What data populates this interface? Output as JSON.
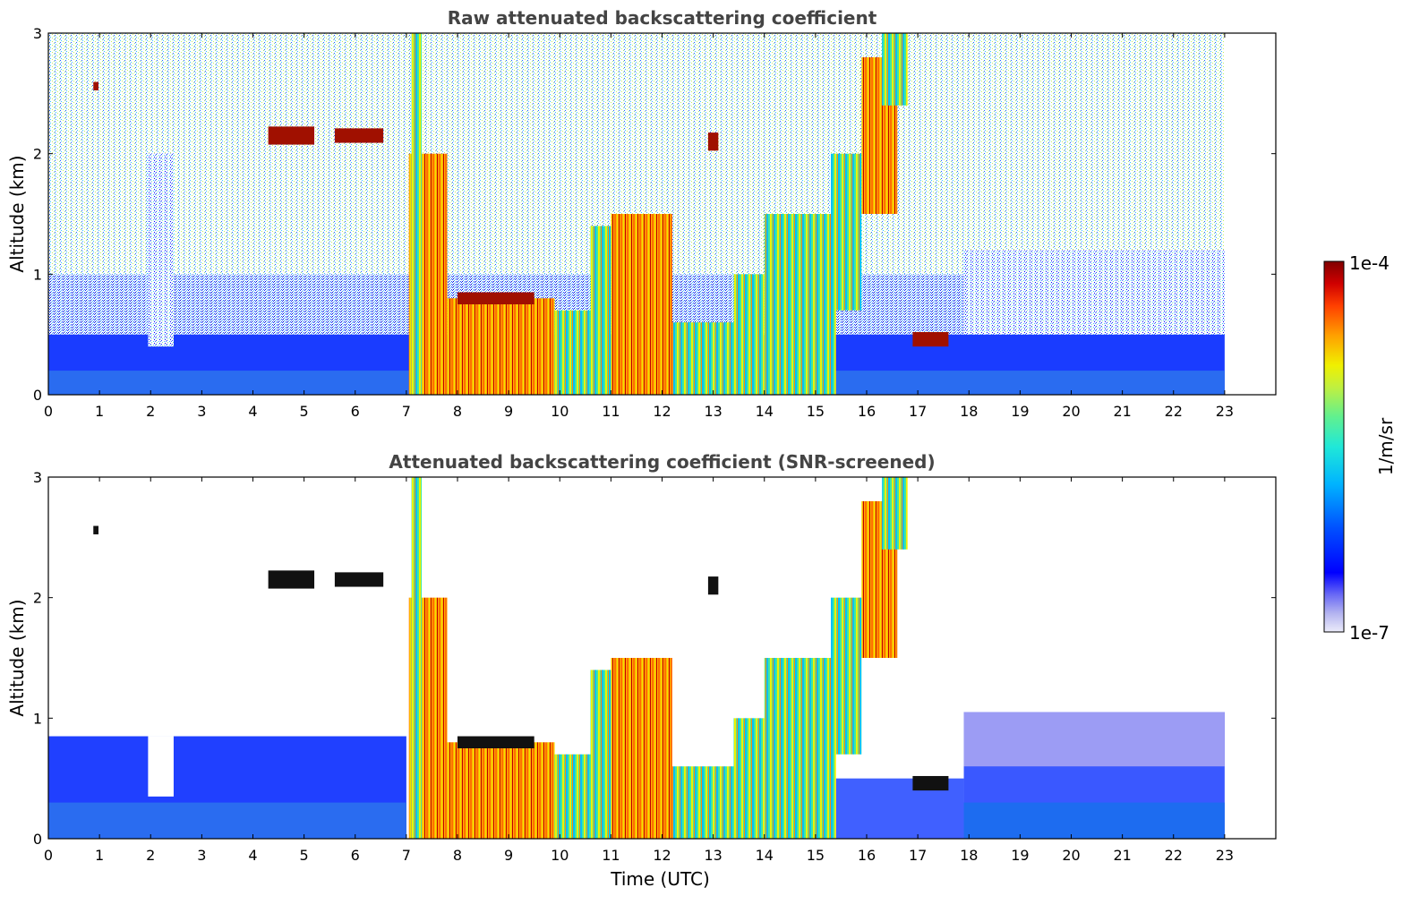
{
  "chart_data": [
    {
      "type": "heatmap",
      "title": "Raw attenuated backscattering coefficient",
      "xlabel": "",
      "ylabel": "Altitude (km)",
      "xlim": [
        0,
        24
      ],
      "ylim": [
        0,
        3
      ],
      "xticks": [
        "0",
        "1",
        "2",
        "3",
        "4",
        "5",
        "6",
        "7",
        "8",
        "9",
        "10",
        "11",
        "12",
        "13",
        "14",
        "15",
        "16",
        "17",
        "18",
        "19",
        "20",
        "21",
        "22",
        "23"
      ],
      "yticks": [
        "0",
        "1",
        "2",
        "3"
      ],
      "screened": false
    },
    {
      "type": "heatmap",
      "title": "Attenuated backscattering coefficient (SNR-screened)",
      "xlabel": "Time (UTC)",
      "ylabel": "Altitude (km)",
      "xlim": [
        0,
        24
      ],
      "ylim": [
        0,
        3
      ],
      "xticks": [
        "0",
        "1",
        "2",
        "3",
        "4",
        "5",
        "6",
        "7",
        "8",
        "9",
        "10",
        "11",
        "12",
        "13",
        "14",
        "15",
        "16",
        "17",
        "18",
        "19",
        "20",
        "21",
        "22",
        "23"
      ],
      "yticks": [
        "0",
        "1",
        "2",
        "3"
      ],
      "screened": true
    }
  ],
  "colorbar": {
    "min_label": "1e-7",
    "max_label": "1e-4",
    "unit_label": "1/m/sr",
    "colors": [
      "#ececfa",
      "#b4b4f0",
      "#7878f0",
      "#0000ff",
      "#0040ff",
      "#0090ff",
      "#00c8ff",
      "#20e8d8",
      "#60f090",
      "#b0f050",
      "#f0f000",
      "#ffc000",
      "#ff8000",
      "#ff3000",
      "#d00000",
      "#800000"
    ]
  },
  "features": {
    "data_end_hour": 23,
    "cloud_segments": [
      {
        "t0": 0.88,
        "t1": 0.98,
        "z": 2.56,
        "thick": 0.07
      },
      {
        "t0": 4.3,
        "t1": 5.2,
        "z": 2.15,
        "thick": 0.15
      },
      {
        "t0": 5.6,
        "t1": 6.55,
        "z": 2.15,
        "thick": 0.12
      },
      {
        "t0": 8.0,
        "t1": 9.5,
        "z": 0.8,
        "thick": 0.1
      },
      {
        "t0": 16.9,
        "t1": 17.6,
        "z": 0.46,
        "thick": 0.12
      },
      {
        "t0": 12.9,
        "t1": 13.1,
        "z": 2.1,
        "thick": 0.15
      }
    ]
  }
}
